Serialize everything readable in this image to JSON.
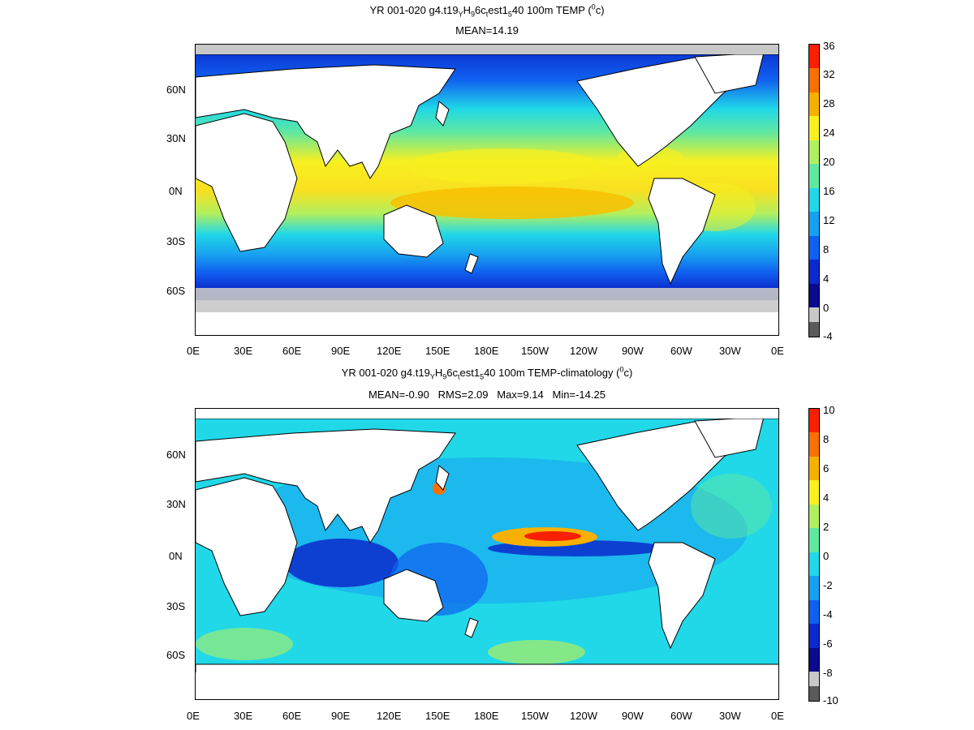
{
  "panels": [
    {
      "id": "top",
      "title": {
        "prefix": "YR 001-020 g4.t19",
        "s1": "Y",
        "mid1": "H",
        "s2": "9",
        "mid2": "6c",
        "s3": "t",
        "mid3": "est1",
        "s4": "5",
        "mid4": "40 100m TEMP (",
        "sup": "0",
        "suffix": "c)"
      },
      "stats": "MEAN=14.19",
      "colorbar_labels": [
        "36",
        "32",
        "28",
        "24",
        "20",
        "16",
        "12",
        "8",
        "4",
        "0",
        "-4"
      ],
      "colorbar_colors": [
        "#5a5a5a",
        "#c8c8c8",
        "#0a0a8c",
        "#0b2acb",
        "#1060f0",
        "#18a0f0",
        "#20d8e8",
        "#60e8a0",
        "#b0f060",
        "#f8f020",
        "#f8b000",
        "#f87000",
        "#f82000"
      ]
    },
    {
      "id": "bottom",
      "title": {
        "prefix": "YR 001-020 g4.t19",
        "s1": "Y",
        "mid1": "H",
        "s2": "9",
        "mid2": "6c",
        "s3": "t",
        "mid3": "est1",
        "s4": "5",
        "mid4": "40 100m TEMP-climatology (",
        "sup": "0",
        "suffix": "c)"
      },
      "stats": "MEAN=-0.90   RMS=2.09   Max=9.14   Min=-14.25",
      "colorbar_labels": [
        "10",
        "8",
        "6",
        "4",
        "2",
        "0",
        "-2",
        "-4",
        "-6",
        "-8",
        "-10"
      ],
      "colorbar_colors": [
        "#5a5a5a",
        "#c8c8c8",
        "#0a0a8c",
        "#0b2acb",
        "#1060f0",
        "#18a0f0",
        "#20d8e8",
        "#60e8a0",
        "#b0f060",
        "#f8f020",
        "#f8b000",
        "#f87000",
        "#f82000"
      ]
    }
  ],
  "lon_labels": [
    "0E",
    "30E",
    "60E",
    "90E",
    "120E",
    "150E",
    "180E",
    "150W",
    "120W",
    "90W",
    "60W",
    "30W",
    "0E"
  ],
  "lat_labels": [
    "60N",
    "30N",
    "0N",
    "30S",
    "60S"
  ]
}
